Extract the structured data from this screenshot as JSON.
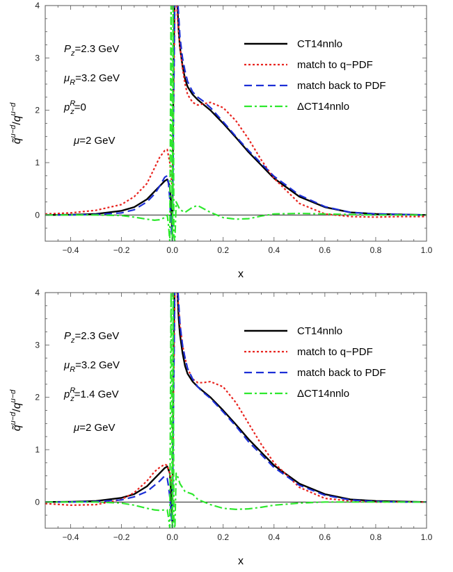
{
  "colors": {
    "ct14": "#000000",
    "match_q": "#e8231e",
    "match_back": "#1c2fd6",
    "delta": "#2ee82e",
    "frame": "#555555"
  },
  "chart_data": [
    {
      "type": "line",
      "xlabel": "x",
      "ylabel_parts": {
        "base": "q̃",
        "sup": "u−d",
        "slash": "/",
        "base2": "q",
        "sup2": "u−d"
      },
      "xlim": [
        -0.5,
        1.0
      ],
      "ylim": [
        -0.5,
        4.0
      ],
      "xticks": [
        "−0.4",
        "−0.2",
        "0.0",
        "0.2",
        "0.4",
        "0.6",
        "0.8",
        "1.0"
      ],
      "xtick_values": [
        -0.4,
        -0.2,
        0.0,
        0.2,
        0.4,
        0.6,
        0.8,
        1.0
      ],
      "yticks": [
        "0",
        "1",
        "2",
        "3",
        "4"
      ],
      "ytick_values": [
        0,
        1,
        2,
        3,
        4
      ],
      "legend_placement": "top-right",
      "annotations": [
        {
          "main": "P",
          "sub": "z",
          "sup": "",
          "rest": "=2.3 GeV"
        },
        {
          "main": "μ",
          "sub": "R",
          "sup": "",
          "rest": "=3.2 GeV"
        },
        {
          "main": "p",
          "sub": "z",
          "sup": "R",
          "rest": "=0"
        },
        {
          "main": "μ",
          "sub": "",
          "sup": "",
          "rest": "=2 GeV"
        }
      ],
      "series": [
        {
          "name": "CT14nnlo",
          "style": "solid",
          "color_key": "ct14",
          "x": [
            -0.5,
            -0.4,
            -0.3,
            -0.2,
            -0.15,
            -0.1,
            -0.07,
            -0.05,
            -0.03,
            -0.02,
            -0.01,
            -0.005,
            0.0,
            0.005,
            0.01,
            0.015,
            0.02,
            0.025,
            0.03,
            0.04,
            0.05,
            0.06,
            0.08,
            0.1,
            0.12,
            0.15,
            0.2,
            0.25,
            0.3,
            0.4,
            0.5,
            0.6,
            0.7,
            0.8,
            0.9,
            1.0
          ],
          "y": [
            0.0,
            0.005,
            0.02,
            0.08,
            0.15,
            0.3,
            0.45,
            0.55,
            0.65,
            0.68,
            0.55,
            0.2,
            -0.4,
            3.0,
            5.0,
            4.5,
            4.0,
            3.5,
            3.2,
            2.85,
            2.6,
            2.45,
            2.3,
            2.2,
            2.12,
            2.0,
            1.75,
            1.48,
            1.2,
            0.7,
            0.35,
            0.15,
            0.05,
            0.02,
            0.01,
            0.0
          ]
        },
        {
          "name": "match to q−PDF",
          "style": "dotted",
          "color_key": "match_q",
          "x": [
            -0.5,
            -0.4,
            -0.3,
            -0.2,
            -0.15,
            -0.1,
            -0.07,
            -0.05,
            -0.03,
            -0.02,
            -0.01,
            0.0,
            0.01,
            0.015,
            0.02,
            0.03,
            0.04,
            0.05,
            0.06,
            0.08,
            0.1,
            0.12,
            0.15,
            0.2,
            0.25,
            0.3,
            0.35,
            0.4,
            0.5,
            0.6,
            0.7,
            0.8,
            0.9,
            1.0
          ],
          "y": [
            0.02,
            0.04,
            0.09,
            0.2,
            0.35,
            0.6,
            0.9,
            1.1,
            1.23,
            1.25,
            1.0,
            0.5,
            4.0,
            4.5,
            3.8,
            3.2,
            2.8,
            2.5,
            2.3,
            2.15,
            2.1,
            2.12,
            2.15,
            2.05,
            1.8,
            1.45,
            1.05,
            0.7,
            0.22,
            0.02,
            -0.03,
            -0.04,
            -0.03,
            -0.03
          ]
        },
        {
          "name": "match back to PDF",
          "style": "dashed",
          "color_key": "match_back",
          "x": [
            -0.5,
            -0.4,
            -0.3,
            -0.2,
            -0.15,
            -0.1,
            -0.07,
            -0.05,
            -0.03,
            -0.02,
            -0.015,
            -0.01,
            -0.005,
            0.0,
            0.005,
            0.01,
            0.015,
            0.02,
            0.03,
            0.04,
            0.05,
            0.06,
            0.08,
            0.1,
            0.12,
            0.15,
            0.2,
            0.25,
            0.3,
            0.4,
            0.5,
            0.6,
            0.7,
            0.8,
            0.9,
            1.0
          ],
          "y": [
            0.0,
            0.0,
            0.01,
            0.04,
            0.1,
            0.25,
            0.4,
            0.55,
            0.72,
            0.75,
            0.6,
            0.3,
            -0.2,
            -0.5,
            2.0,
            5.0,
            4.6,
            4.2,
            3.4,
            3.0,
            2.75,
            2.55,
            2.35,
            2.25,
            2.18,
            2.05,
            1.78,
            1.5,
            1.23,
            0.74,
            0.38,
            0.16,
            0.05,
            0.02,
            0.01,
            0.0
          ]
        },
        {
          "name": "ΔCT14nnlo",
          "style": "dashdot",
          "color_key": "delta",
          "x": [
            -0.5,
            -0.3,
            -0.2,
            -0.15,
            -0.1,
            -0.07,
            -0.05,
            -0.03,
            -0.02,
            -0.015,
            -0.01,
            -0.005,
            0.0,
            0.003,
            0.006,
            0.01,
            0.015,
            0.02,
            0.03,
            0.05,
            0.08,
            0.1,
            0.15,
            0.2,
            0.25,
            0.3,
            0.35,
            0.4,
            0.5,
            0.6,
            0.7,
            0.8,
            0.9,
            1.0
          ],
          "y": [
            0.0,
            0.0,
            -0.01,
            -0.04,
            -0.08,
            -0.1,
            -0.09,
            -0.05,
            0.0,
            -0.2,
            -0.5,
            4.0,
            -0.5,
            4.0,
            -0.4,
            -0.5,
            0.25,
            0.2,
            0.1,
            0.05,
            0.15,
            0.18,
            0.05,
            -0.05,
            -0.08,
            -0.07,
            -0.02,
            0.02,
            0.03,
            0.02,
            0.01,
            0.0,
            0.0,
            0.0
          ]
        }
      ]
    },
    {
      "type": "line",
      "xlabel": "x",
      "ylabel_parts": {
        "base": "q̃",
        "sup": "u−d",
        "slash": "/",
        "base2": "q",
        "sup2": "u−d"
      },
      "xlim": [
        -0.5,
        1.0
      ],
      "ylim": [
        -0.5,
        4.0
      ],
      "xticks": [
        "−0.4",
        "−0.2",
        "0.0",
        "0.2",
        "0.4",
        "0.6",
        "0.8",
        "1.0"
      ],
      "xtick_values": [
        -0.4,
        -0.2,
        0.0,
        0.2,
        0.4,
        0.6,
        0.8,
        1.0
      ],
      "yticks": [
        "0",
        "1",
        "2",
        "3",
        "4"
      ],
      "ytick_values": [
        0,
        1,
        2,
        3,
        4
      ],
      "legend_placement": "top-right",
      "annotations": [
        {
          "main": "P",
          "sub": "z",
          "sup": "",
          "rest": "=2.3 GeV"
        },
        {
          "main": "μ",
          "sub": "R",
          "sup": "",
          "rest": "=3.2 GeV"
        },
        {
          "main": "p",
          "sub": "z",
          "sup": "R",
          "rest": "=1.4 GeV"
        },
        {
          "main": "μ",
          "sub": "",
          "sup": "",
          "rest": "=2 GeV"
        }
      ],
      "series": [
        {
          "name": "CT14nnlo",
          "style": "solid",
          "color_key": "ct14",
          "x": [
            -0.5,
            -0.4,
            -0.3,
            -0.2,
            -0.15,
            -0.1,
            -0.07,
            -0.05,
            -0.03,
            -0.02,
            -0.01,
            -0.005,
            0.0,
            0.005,
            0.01,
            0.015,
            0.02,
            0.025,
            0.03,
            0.04,
            0.05,
            0.06,
            0.08,
            0.1,
            0.12,
            0.15,
            0.2,
            0.25,
            0.3,
            0.4,
            0.5,
            0.6,
            0.7,
            0.8,
            0.9,
            1.0
          ],
          "y": [
            0.0,
            0.005,
            0.02,
            0.08,
            0.15,
            0.3,
            0.45,
            0.55,
            0.65,
            0.68,
            0.55,
            0.2,
            -0.4,
            3.0,
            5.0,
            4.5,
            4.0,
            3.5,
            3.2,
            2.85,
            2.6,
            2.45,
            2.3,
            2.2,
            2.12,
            2.0,
            1.75,
            1.48,
            1.2,
            0.7,
            0.35,
            0.15,
            0.05,
            0.02,
            0.01,
            0.0
          ]
        },
        {
          "name": "match to q−PDF",
          "style": "dotted",
          "color_key": "match_q",
          "x": [
            -0.5,
            -0.4,
            -0.3,
            -0.2,
            -0.15,
            -0.1,
            -0.07,
            -0.05,
            -0.03,
            -0.02,
            -0.01,
            0.0,
            0.01,
            0.015,
            0.02,
            0.03,
            0.04,
            0.05,
            0.06,
            0.08,
            0.1,
            0.12,
            0.15,
            0.2,
            0.25,
            0.3,
            0.35,
            0.4,
            0.5,
            0.6,
            0.7,
            0.8,
            0.9,
            1.0
          ],
          "y": [
            -0.03,
            -0.06,
            -0.05,
            0.05,
            0.18,
            0.4,
            0.58,
            0.66,
            0.72,
            0.7,
            0.55,
            0.3,
            4.0,
            4.5,
            4.0,
            3.4,
            3.0,
            2.75,
            2.55,
            2.35,
            2.28,
            2.28,
            2.3,
            2.2,
            1.9,
            1.5,
            1.1,
            0.75,
            0.28,
            0.07,
            0.02,
            0.0,
            0.0,
            0.0
          ]
        },
        {
          "name": "match back to PDF",
          "style": "dashed",
          "color_key": "match_back",
          "x": [
            -0.5,
            -0.4,
            -0.3,
            -0.2,
            -0.15,
            -0.1,
            -0.07,
            -0.05,
            -0.03,
            -0.02,
            -0.015,
            -0.01,
            -0.005,
            0.0,
            0.005,
            0.01,
            0.015,
            0.02,
            0.03,
            0.04,
            0.05,
            0.06,
            0.08,
            0.1,
            0.12,
            0.15,
            0.2,
            0.25,
            0.3,
            0.4,
            0.5,
            0.6,
            0.7,
            0.8,
            0.9,
            1.0
          ],
          "y": [
            0.0,
            0.0,
            0.01,
            0.04,
            0.1,
            0.2,
            0.32,
            0.4,
            0.5,
            0.45,
            0.3,
            0.1,
            -0.2,
            -0.5,
            2.0,
            5.0,
            4.6,
            4.2,
            3.4,
            3.0,
            2.75,
            2.55,
            2.35,
            2.2,
            2.1,
            1.98,
            1.72,
            1.45,
            1.15,
            0.66,
            0.32,
            0.13,
            0.04,
            0.01,
            0.0,
            0.0
          ]
        },
        {
          "name": "ΔCT14nnlo",
          "style": "dashdot",
          "color_key": "delta",
          "x": [
            -0.5,
            -0.3,
            -0.2,
            -0.15,
            -0.1,
            -0.07,
            -0.05,
            -0.03,
            -0.02,
            -0.015,
            -0.01,
            -0.005,
            0.0,
            0.003,
            0.006,
            0.01,
            0.015,
            0.02,
            0.03,
            0.05,
            0.08,
            0.1,
            0.15,
            0.2,
            0.25,
            0.3,
            0.35,
            0.4,
            0.5,
            0.6,
            0.7,
            0.8,
            0.9,
            1.0
          ],
          "y": [
            0.0,
            0.0,
            -0.02,
            -0.06,
            -0.12,
            -0.15,
            -0.16,
            -0.15,
            -0.15,
            -0.3,
            -0.5,
            4.0,
            -0.5,
            4.0,
            -0.4,
            -0.5,
            0.55,
            0.5,
            0.35,
            0.2,
            0.15,
            0.05,
            -0.05,
            -0.12,
            -0.14,
            -0.13,
            -0.1,
            -0.06,
            -0.02,
            0.0,
            0.0,
            0.0,
            0.0,
            0.0
          ]
        }
      ]
    }
  ]
}
